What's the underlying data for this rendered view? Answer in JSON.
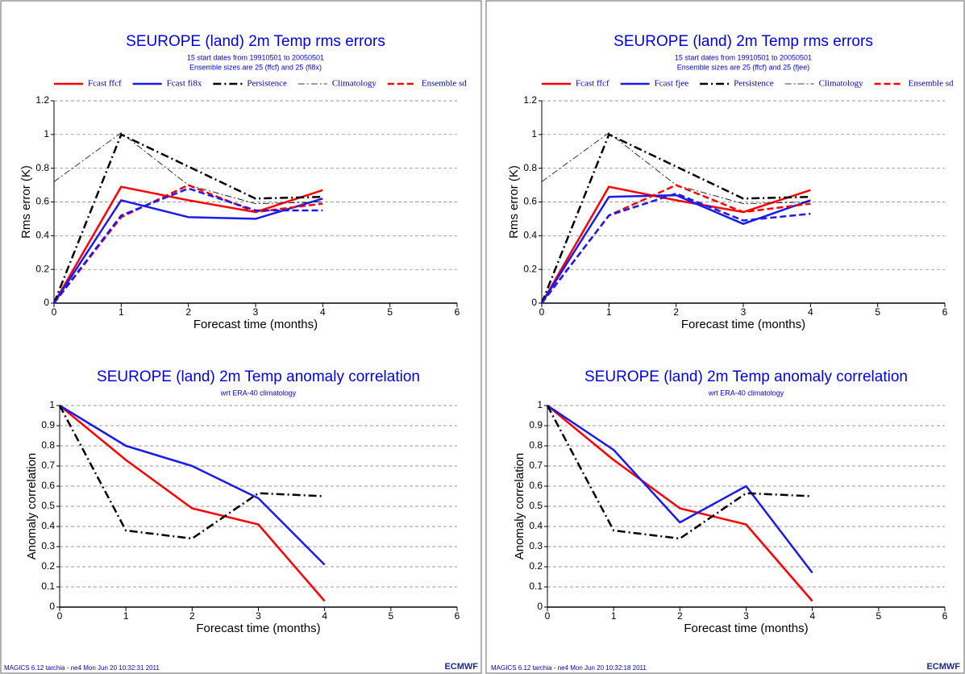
{
  "chart_data": [
    {
      "type": "line",
      "title": "SEUROPE (land) 2m Temp rms errors",
      "subtitle": [
        "15 start dates from 19910501  to 20050501",
        "Ensemble sizes are 25 (ffcf)  and 25 (fi8x)"
      ],
      "x_label": "Forecast time (months)",
      "y_label": "Rms error (K)",
      "x": [
        0,
        1,
        2,
        3,
        4
      ],
      "xlim": [
        0,
        6
      ],
      "xticks": [
        0,
        1,
        2,
        3,
        4,
        5,
        6
      ],
      "ylim": [
        0,
        1.2
      ],
      "yticks": [
        0,
        0.2,
        0.4,
        0.6,
        0.8,
        1,
        1.2
      ],
      "grid": true,
      "series": [
        {
          "name": "Fcast ffcf",
          "color": "#ff0000",
          "style": "solid",
          "values": [
            0,
            0.69,
            0.61,
            0.54,
            0.67
          ]
        },
        {
          "name": "Fcast fi8x",
          "color": "#1a1aee",
          "style": "solid",
          "values": [
            0,
            0.61,
            0.51,
            0.5,
            0.62
          ]
        },
        {
          "name": "Persistence",
          "color": "#000000",
          "style": "dashdot",
          "values": [
            0,
            1.0,
            0.81,
            0.62,
            0.63
          ]
        },
        {
          "name": "Climatology",
          "color": "#000000",
          "style": "thin",
          "values": [
            0.72,
            1.01,
            0.7,
            0.59,
            0.6
          ]
        },
        {
          "name": "Ensemble sd",
          "color": "#ff0000",
          "style": "dashed",
          "values": [
            0,
            0.51,
            0.7,
            0.54,
            0.59
          ]
        },
        {
          "color": "#1a1aee",
          "style": "dashed",
          "values": [
            0,
            0.52,
            0.68,
            0.55,
            0.55
          ]
        }
      ]
    },
    {
      "type": "line",
      "title": "SEUROPE (land) 2m Temp anomaly correlation",
      "subtitle": [
        "wrt ERA-40 climatology"
      ],
      "x_label": "Forecast time (months)",
      "y_label": "Anomaly correlation",
      "x": [
        0,
        1,
        2,
        3,
        4
      ],
      "xlim": [
        0,
        6
      ],
      "xticks": [
        0,
        1,
        2,
        3,
        4,
        5,
        6
      ],
      "ylim": [
        0,
        1
      ],
      "yticks": [
        0,
        0.1,
        0.2,
        0.3,
        0.4,
        0.5,
        0.6,
        0.7,
        0.8,
        0.9,
        1
      ],
      "grid": true,
      "series": [
        {
          "color": "#ff0000",
          "style": "solid",
          "values": [
            1,
            0.73,
            0.49,
            0.41,
            0.03
          ]
        },
        {
          "color": "#1a1aee",
          "style": "solid",
          "values": [
            1,
            0.8,
            0.7,
            0.54,
            0.21
          ]
        },
        {
          "color": "#000000",
          "style": "dashdot",
          "values": [
            1,
            0.38,
            0.34,
            0.565,
            0.55
          ]
        }
      ]
    },
    {
      "type": "line",
      "title": "SEUROPE (land) 2m Temp rms errors",
      "subtitle": [
        "15 start dates from 19910501  to 20050501",
        "Ensemble sizes are 25 (ffcf)  and 25 (fjee)"
      ],
      "x_label": "Forecast time (months)",
      "y_label": "Rms error (K)",
      "x": [
        0,
        1,
        2,
        3,
        4
      ],
      "xlim": [
        0,
        6
      ],
      "xticks": [
        0,
        1,
        2,
        3,
        4,
        5,
        6
      ],
      "ylim": [
        0,
        1.2
      ],
      "yticks": [
        0,
        0.2,
        0.4,
        0.6,
        0.8,
        1,
        1.2
      ],
      "grid": true,
      "series": [
        {
          "name": "Fcast ffcf",
          "color": "#ff0000",
          "style": "solid",
          "values": [
            0,
            0.69,
            0.61,
            0.54,
            0.67
          ]
        },
        {
          "name": "Fcast fjee",
          "color": "#1a1aee",
          "style": "solid",
          "values": [
            0,
            0.63,
            0.64,
            0.47,
            0.61
          ]
        },
        {
          "name": "Persistence",
          "color": "#000000",
          "style": "dashdot",
          "values": [
            0,
            1.0,
            0.81,
            0.62,
            0.63
          ]
        },
        {
          "name": "Climatology",
          "color": "#000000",
          "style": "thin",
          "values": [
            0.72,
            1.01,
            0.7,
            0.59,
            0.6
          ]
        },
        {
          "name": "Ensemble sd",
          "color": "#ff0000",
          "style": "dashed",
          "values": [
            0,
            0.52,
            0.7,
            0.54,
            0.59
          ]
        },
        {
          "color": "#1a1aee",
          "style": "dashed",
          "values": [
            0,
            0.52,
            0.65,
            0.49,
            0.53
          ]
        }
      ]
    },
    {
      "type": "line",
      "title": "SEUROPE (land) 2m Temp anomaly correlation",
      "subtitle": [
        "wrt ERA-40 climatology"
      ],
      "x_label": "Forecast time (months)",
      "y_label": "Anomaly correlation",
      "x": [
        0,
        1,
        2,
        3,
        4
      ],
      "xlim": [
        0,
        6
      ],
      "xticks": [
        0,
        1,
        2,
        3,
        4,
        5,
        6
      ],
      "ylim": [
        0,
        1
      ],
      "yticks": [
        0,
        0.1,
        0.2,
        0.3,
        0.4,
        0.5,
        0.6,
        0.7,
        0.8,
        0.9,
        1
      ],
      "grid": true,
      "series": [
        {
          "color": "#ff0000",
          "style": "solid",
          "values": [
            1,
            0.73,
            0.49,
            0.41,
            0.03
          ]
        },
        {
          "color": "#1a1aee",
          "style": "solid",
          "values": [
            1,
            0.78,
            0.42,
            0.6,
            0.17
          ]
        },
        {
          "color": "#000000",
          "style": "dashdot",
          "values": [
            1,
            0.38,
            0.34,
            0.565,
            0.55
          ]
        }
      ]
    }
  ],
  "footers": [
    {
      "text": "MAGICS 6.12 tarchia - ne4 Mon Jun 20 10:32:31 2011",
      "logo": "ECMWF"
    },
    {
      "text": "MAGICS 6.12 tarchia - ne4 Mon Jun 20 10:32:18 2011",
      "logo": "ECMWF"
    }
  ]
}
